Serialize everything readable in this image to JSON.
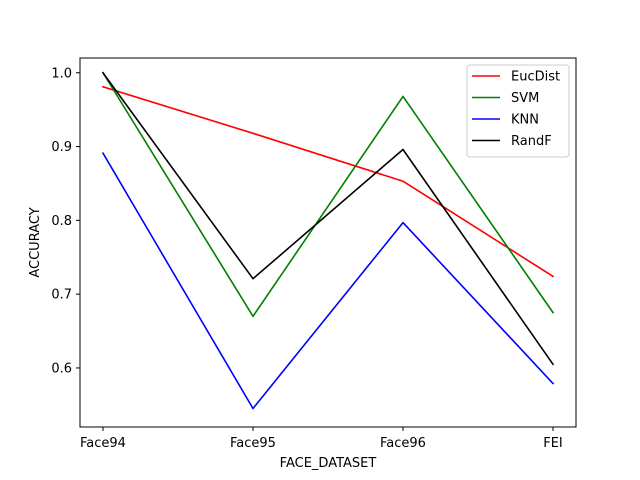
{
  "chart_data": {
    "type": "line",
    "title": "",
    "xlabel": "FACE_DATASET",
    "ylabel": "ACCURACY",
    "categories": [
      "Face94",
      "Face95",
      "Face96",
      "FEI"
    ],
    "ylim": [
      0.52,
      1.02
    ],
    "yticks": [
      "0.6",
      "0.7",
      "0.8",
      "0.9",
      "1.0"
    ],
    "grid": false,
    "legend_position": "top-right",
    "series": [
      {
        "name": "EucDist",
        "color": "#ff0000",
        "values": [
          0.981,
          0.918,
          0.853,
          0.724
        ]
      },
      {
        "name": "SVM",
        "color": "#008000",
        "values": [
          1.0,
          0.67,
          0.968,
          0.675
        ]
      },
      {
        "name": "KNN",
        "color": "#0000ff",
        "values": [
          0.891,
          0.545,
          0.797,
          0.579
        ]
      },
      {
        "name": "RandF",
        "color": "#000000",
        "values": [
          1.0,
          0.721,
          0.896,
          0.605
        ]
      }
    ]
  }
}
